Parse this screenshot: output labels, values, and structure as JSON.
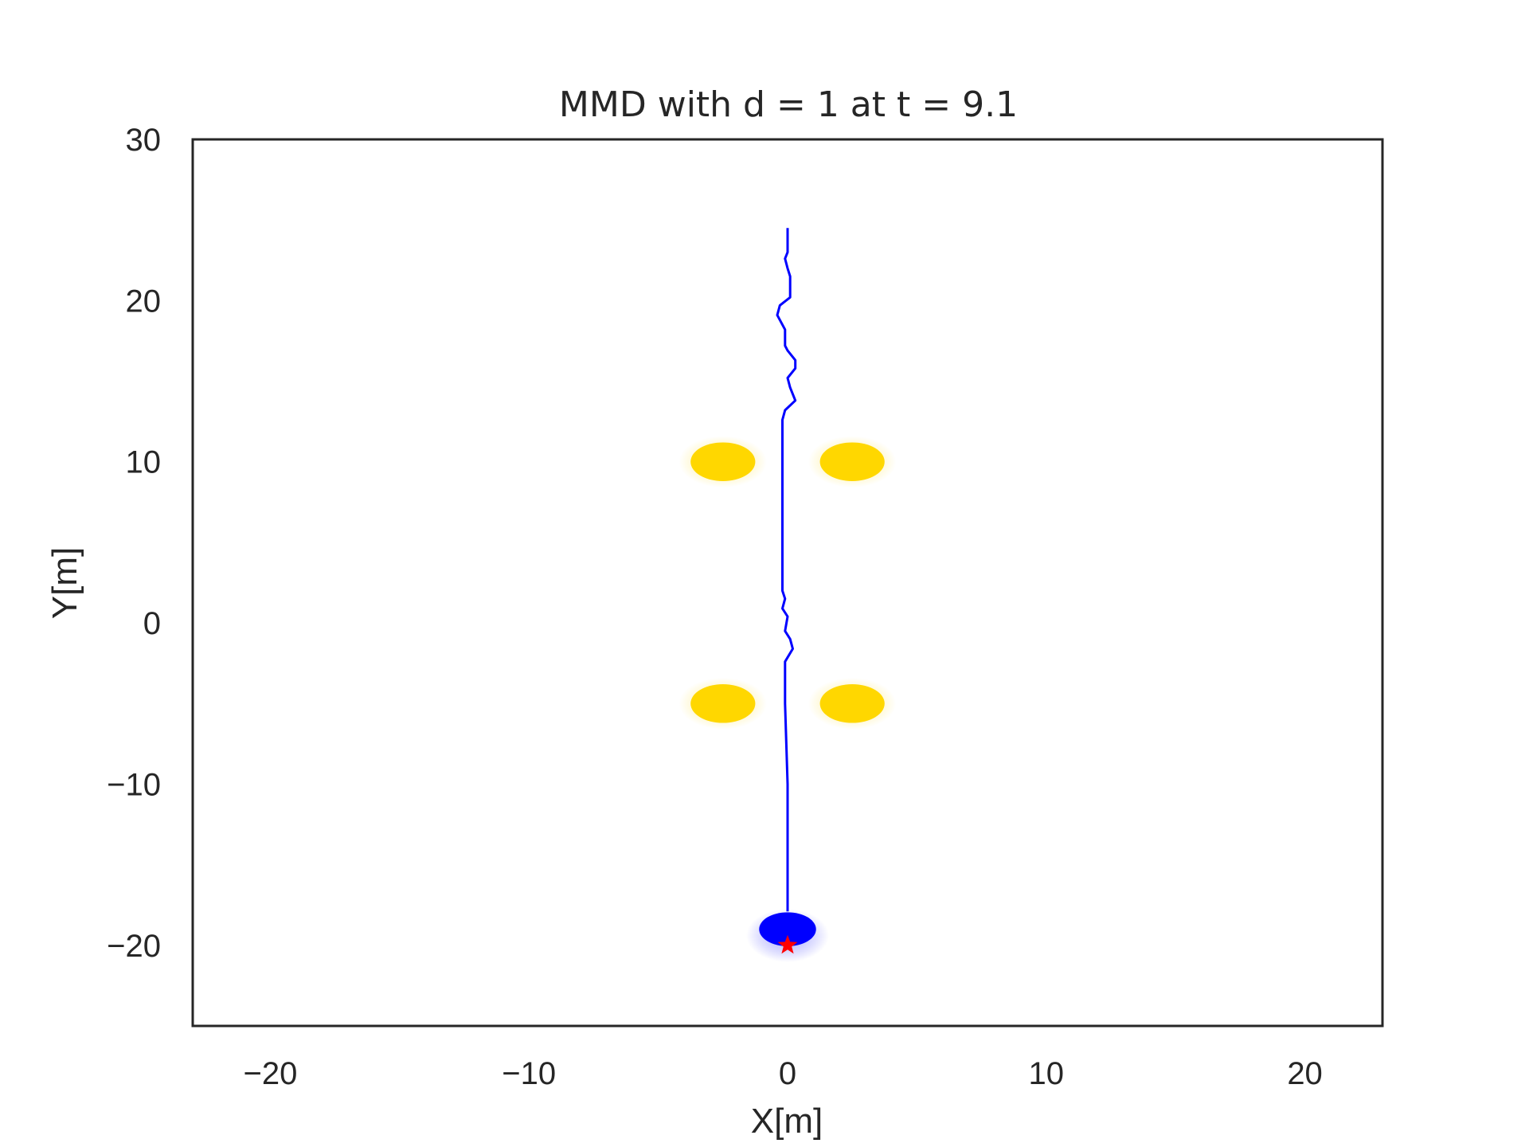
{
  "chart_data": {
    "type": "scatter",
    "title": "MMD with d = 1 at t = 9.1",
    "xlabel": "X[m]",
    "ylabel": "Y[m]",
    "xlim": [
      -23,
      23
    ],
    "ylim": [
      -25,
      30
    ],
    "xticks": [
      -20,
      -10,
      0,
      10,
      20
    ],
    "xtick_labels": [
      "−20",
      "−10",
      "0",
      "10",
      "20"
    ],
    "yticks": [
      -20,
      -10,
      0,
      10,
      20,
      30
    ],
    "ytick_labels": [
      "−20",
      "−10",
      "0",
      "10",
      "20",
      "30"
    ],
    "grid": false,
    "legend": "none",
    "series": [
      {
        "kind": "obstacles",
        "color": "#FFD700",
        "points": [
          {
            "x": -2.5,
            "y": 10
          },
          {
            "x": 2.5,
            "y": 10
          },
          {
            "x": -2.5,
            "y": -5
          },
          {
            "x": 2.5,
            "y": -5
          }
        ]
      },
      {
        "kind": "trajectory",
        "color": "#0000FF",
        "points": [
          {
            "x": 0.0,
            "y": 24.5
          },
          {
            "x": 0.0,
            "y": 23.0
          },
          {
            "x": -0.1,
            "y": 22.6
          },
          {
            "x": 0.0,
            "y": 22.0
          },
          {
            "x": 0.1,
            "y": 21.5
          },
          {
            "x": 0.1,
            "y": 20.2
          },
          {
            "x": -0.3,
            "y": 19.7
          },
          {
            "x": -0.4,
            "y": 19.1
          },
          {
            "x": -0.1,
            "y": 18.2
          },
          {
            "x": -0.1,
            "y": 17.2
          },
          {
            "x": 0.0,
            "y": 16.9
          },
          {
            "x": 0.3,
            "y": 16.3
          },
          {
            "x": 0.3,
            "y": 15.8
          },
          {
            "x": 0.0,
            "y": 15.2
          },
          {
            "x": 0.1,
            "y": 14.6
          },
          {
            "x": 0.3,
            "y": 13.8
          },
          {
            "x": -0.1,
            "y": 13.2
          },
          {
            "x": -0.2,
            "y": 12.6
          },
          {
            "x": -0.2,
            "y": 11.5
          },
          {
            "x": -0.2,
            "y": 10.0
          },
          {
            "x": -0.2,
            "y": 8.0
          },
          {
            "x": -0.2,
            "y": 5.0
          },
          {
            "x": -0.2,
            "y": 2.0
          },
          {
            "x": -0.1,
            "y": 1.5
          },
          {
            "x": -0.2,
            "y": 0.9
          },
          {
            "x": 0.0,
            "y": 0.4
          },
          {
            "x": -0.1,
            "y": -0.5
          },
          {
            "x": 0.1,
            "y": -1.0
          },
          {
            "x": 0.2,
            "y": -1.6
          },
          {
            "x": -0.1,
            "y": -2.4
          },
          {
            "x": -0.1,
            "y": -3.0
          },
          {
            "x": -0.1,
            "y": -5.0
          },
          {
            "x": 0.0,
            "y": -10.0
          },
          {
            "x": 0.0,
            "y": -14.0
          },
          {
            "x": 0.0,
            "y": -17.9
          }
        ]
      },
      {
        "kind": "agent",
        "color": "#0000FF",
        "points": [
          {
            "x": 0.0,
            "y": -19.0
          }
        ]
      },
      {
        "kind": "goal",
        "marker": "star",
        "color": "#FF0000",
        "points": [
          {
            "x": 0.0,
            "y": -20.0
          }
        ]
      }
    ]
  }
}
